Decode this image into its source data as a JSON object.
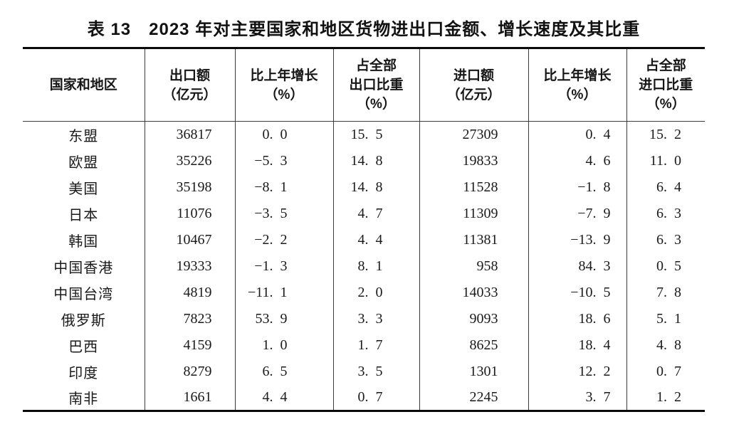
{
  "title": "表 13　2023 年对主要国家和地区货物进出口金额、增长速度及其比重",
  "colors": {
    "text": "#1a1a1a",
    "rule_thick": "#0a0a0a",
    "rule_thin": "#3c3c3c",
    "background": "#ffffff"
  },
  "table": {
    "columns": [
      {
        "key": "region",
        "label_lines": [
          "国家和地区"
        ]
      },
      {
        "key": "export_value",
        "label_lines": [
          "出口额",
          "（亿元）"
        ]
      },
      {
        "key": "export_growth",
        "label_lines": [
          "比上年增长",
          "（%）"
        ]
      },
      {
        "key": "export_share",
        "label_lines": [
          "占全部",
          "出口比重",
          "（%）"
        ]
      },
      {
        "key": "import_value",
        "label_lines": [
          "进口额",
          "（亿元）"
        ]
      },
      {
        "key": "import_growth",
        "label_lines": [
          "比上年增长",
          "（%）"
        ]
      },
      {
        "key": "import_share",
        "label_lines": [
          "占全部",
          "进口比重",
          "（%）"
        ]
      }
    ],
    "rows": [
      {
        "region": "东盟",
        "export_value": "36817",
        "export_growth": "0.0",
        "export_share": "15.5",
        "import_value": "27309",
        "import_growth": "0.4",
        "import_share": "15.2"
      },
      {
        "region": "欧盟",
        "export_value": "35226",
        "export_growth": "-5.3",
        "export_share": "14.8",
        "import_value": "19833",
        "import_growth": "4.6",
        "import_share": "11.0"
      },
      {
        "region": "美国",
        "export_value": "35198",
        "export_growth": "-8.1",
        "export_share": "14.8",
        "import_value": "11528",
        "import_growth": "-1.8",
        "import_share": "6.4"
      },
      {
        "region": "日本",
        "export_value": "11076",
        "export_growth": "-3.5",
        "export_share": "4.7",
        "import_value": "11309",
        "import_growth": "-7.9",
        "import_share": "6.3"
      },
      {
        "region": "韩国",
        "export_value": "10467",
        "export_growth": "-2.2",
        "export_share": "4.4",
        "import_value": "11381",
        "import_growth": "-13.9",
        "import_share": "6.3"
      },
      {
        "region": "中国香港",
        "export_value": "19333",
        "export_growth": "-1.3",
        "export_share": "8.1",
        "import_value": "958",
        "import_growth": "84.3",
        "import_share": "0.5"
      },
      {
        "region": "中国台湾",
        "export_value": "4819",
        "export_growth": "-11.1",
        "export_share": "2.0",
        "import_value": "14033",
        "import_growth": "-10.5",
        "import_share": "7.8"
      },
      {
        "region": "俄罗斯",
        "export_value": "7823",
        "export_growth": "53.9",
        "export_share": "3.3",
        "import_value": "9093",
        "import_growth": "18.6",
        "import_share": "5.1"
      },
      {
        "region": "巴西",
        "export_value": "4159",
        "export_growth": "1.0",
        "export_share": "1.7",
        "import_value": "8625",
        "import_growth": "18.4",
        "import_share": "4.8"
      },
      {
        "region": "印度",
        "export_value": "8279",
        "export_growth": "6.5",
        "export_share": "3.5",
        "import_value": "1301",
        "import_growth": "12.2",
        "import_share": "0.7"
      },
      {
        "region": "南非",
        "export_value": "1661",
        "export_growth": "4.4",
        "export_share": "0.7",
        "import_value": "2245",
        "import_growth": "3.7",
        "import_share": "1.2"
      }
    ]
  }
}
